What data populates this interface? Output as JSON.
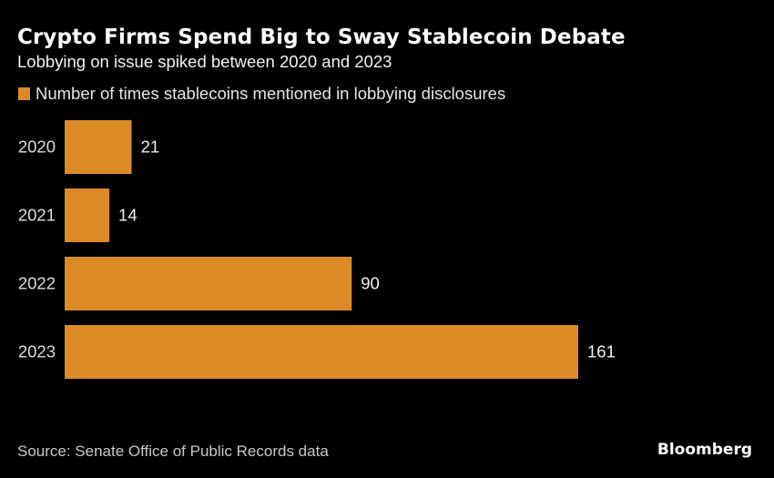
{
  "header": {
    "title": "Crypto Firms Spend Big to Sway Stablecoin Debate",
    "subtitle": "Lobbying on issue spiked between 2020 and 2023"
  },
  "footer": {
    "source": "Source: Senate Office of Public Records data",
    "brand": "Bloomberg"
  },
  "colors": {
    "background": "#000000",
    "bar": "#dc8a26"
  },
  "chart_data": {
    "type": "bar",
    "orientation": "horizontal",
    "title": "Crypto Firms Spend Big to Sway Stablecoin Debate",
    "subtitle": "Lobbying on issue spiked between 2020 and 2023",
    "categories": [
      "2020",
      "2021",
      "2022",
      "2023"
    ],
    "series": [
      {
        "name": "Number of times stablecoins mentioned in lobbying disclosures",
        "values": [
          21,
          14,
          90,
          161
        ]
      }
    ],
    "xlabel": "",
    "ylabel": "",
    "xlim": [
      0,
      161
    ],
    "grid": false,
    "legend": "top-left",
    "data_labels": true,
    "source": "Source: Senate Office of Public Records data"
  }
}
